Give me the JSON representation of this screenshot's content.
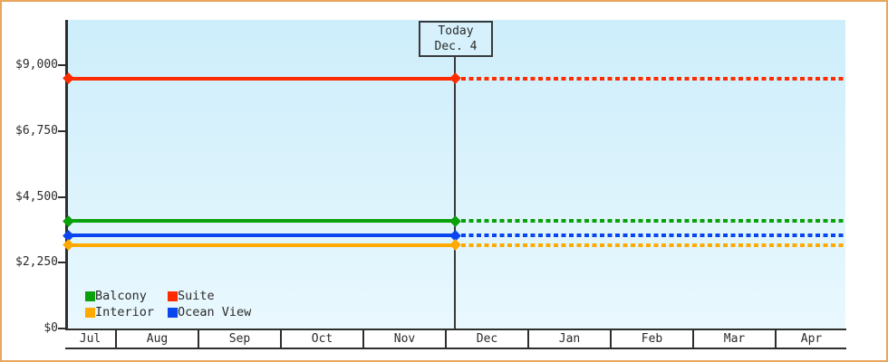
{
  "frame": {
    "border_color": "#e8a55c",
    "background": "#ffffff"
  },
  "chart_data": {
    "type": "line",
    "title": "",
    "xlabel": "",
    "ylabel": "",
    "x_months": [
      "Jul",
      "Aug",
      "Sep",
      "Oct",
      "Nov",
      "Dec",
      "Jan",
      "Feb",
      "Mar",
      "Apr"
    ],
    "y_axis": {
      "tick_labels": [
        "$0",
        "$2,250",
        "$4,500",
        "$6,750",
        "$9,000"
      ],
      "tick_values": [
        0,
        2250,
        4500,
        6750,
        9000
      ],
      "ylim": [
        0,
        10550
      ],
      "grid": false
    },
    "today": {
      "label_line1": "Today",
      "label_line2": "Dec. 4",
      "month": "Dec",
      "day": 4
    },
    "series": [
      {
        "name": "Suite",
        "color": "#ff2c00",
        "value": 8550
      },
      {
        "name": "Balcony",
        "color": "#0aa10a",
        "value": 3670
      },
      {
        "name": "Ocean View",
        "color": "#0a46f0",
        "value": 3175
      },
      {
        "name": "Interior",
        "color": "#ffaa00",
        "value": 2850
      }
    ],
    "line_style": {
      "before_today": "solid",
      "after_today": "dashed",
      "marker": "diamond"
    },
    "legend": {
      "position": "bottom-left",
      "rows": [
        [
          "Balcony",
          "Suite"
        ],
        [
          "Interior",
          "Ocean View"
        ]
      ]
    },
    "plot_background": {
      "top": "#cdeefb",
      "bottom": "#e9f8fe"
    }
  }
}
